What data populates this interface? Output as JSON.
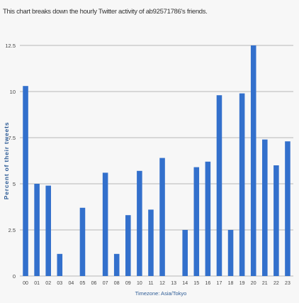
{
  "chart_data": {
    "type": "bar",
    "subtitle": "This chart breaks down the hourly Twitter activity of ab92571786's friends.",
    "xlabel": "Timezone: Asia/Tokyo",
    "ylabel": "Percent of their tweets",
    "categories": [
      "00",
      "01",
      "02",
      "03",
      "04",
      "05",
      "06",
      "07",
      "08",
      "09",
      "10",
      "11",
      "12",
      "13",
      "14",
      "15",
      "16",
      "17",
      "18",
      "19",
      "20",
      "21",
      "22",
      "23"
    ],
    "values": [
      10.3,
      5.0,
      4.9,
      1.2,
      0,
      3.7,
      0,
      5.6,
      1.2,
      3.3,
      5.7,
      3.6,
      6.4,
      0,
      2.5,
      5.9,
      6.2,
      9.8,
      2.5,
      9.9,
      12.5,
      7.4,
      6.0,
      7.3
    ],
    "ylim": [
      0,
      12.5
    ],
    "yticks": [
      0,
      2.5,
      5,
      7.5,
      10,
      12.5
    ],
    "ytick_labels": [
      "0",
      "2.5",
      "5",
      "7.5",
      "10",
      "12.5"
    ],
    "grid": true,
    "colors": {
      "bar": "#3370cc",
      "grid": "#b7b7b7",
      "axis_text": "#444444",
      "ylabel": "#2f5d97"
    }
  }
}
